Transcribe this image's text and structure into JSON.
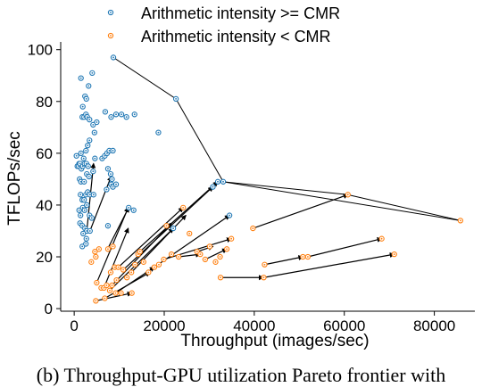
{
  "caption": "(b) Throughput-GPU utilization Pareto frontier with",
  "chart_data": {
    "type": "scatter",
    "xlabel": "Throughput (images/sec)",
    "ylabel": "TFLOPs/sec",
    "xlim": [
      -3000,
      89000
    ],
    "ylim": [
      -1,
      103
    ],
    "xticks": [
      0,
      20000,
      40000,
      60000,
      80000
    ],
    "yticks": [
      0,
      20,
      40,
      60,
      80,
      100
    ],
    "legend": {
      "placement": "top-center"
    },
    "colors": {
      "high": "#1f77b4",
      "low": "#ff7f0e",
      "frontier": "#000000",
      "arrow": "#000000"
    },
    "series": [
      {
        "name": "Arithmetic intensity >= CMR",
        "key": "high",
        "points": [
          [
            1500,
            89
          ],
          [
            1900,
            78
          ],
          [
            2400,
            82
          ],
          [
            2700,
            81
          ],
          [
            3200,
            86
          ],
          [
            4000,
            91
          ],
          [
            8700,
            97
          ],
          [
            1800,
            74
          ],
          [
            2200,
            74
          ],
          [
            2600,
            75
          ],
          [
            2900,
            74
          ],
          [
            3400,
            73
          ],
          [
            4200,
            71
          ],
          [
            5000,
            72
          ],
          [
            6900,
            76
          ],
          [
            8200,
            74
          ],
          [
            9300,
            75
          ],
          [
            10500,
            75
          ],
          [
            11600,
            74
          ],
          [
            13400,
            75
          ],
          [
            18700,
            68
          ],
          [
            22600,
            81
          ],
          [
            500,
            59
          ],
          [
            1100,
            56
          ],
          [
            1500,
            60
          ],
          [
            2100,
            58
          ],
          [
            2600,
            61
          ],
          [
            3000,
            63
          ],
          [
            3400,
            65
          ],
          [
            4500,
            68
          ],
          [
            700,
            55
          ],
          [
            1000,
            55
          ],
          [
            1300,
            56
          ],
          [
            1600,
            54
          ],
          [
            1900,
            55
          ],
          [
            2300,
            56
          ],
          [
            2700,
            56
          ],
          [
            3100,
            55
          ],
          [
            1200,
            50
          ],
          [
            1500,
            49
          ],
          [
            2200,
            49
          ],
          [
            2800,
            52
          ],
          [
            3300,
            51
          ],
          [
            4200,
            53
          ],
          [
            4600,
            58
          ],
          [
            6200,
            58
          ],
          [
            6800,
            59
          ],
          [
            7300,
            60
          ],
          [
            7800,
            61
          ],
          [
            8600,
            61
          ],
          [
            7500,
            54
          ],
          [
            8100,
            52
          ],
          [
            8400,
            50
          ],
          [
            1400,
            44
          ],
          [
            1800,
            42
          ],
          [
            2200,
            42
          ],
          [
            2600,
            44
          ],
          [
            3000,
            45
          ],
          [
            3500,
            44
          ],
          [
            4300,
            44
          ],
          [
            7200,
            46
          ],
          [
            8200,
            48
          ],
          [
            8600,
            47
          ],
          [
            9300,
            48
          ],
          [
            1100,
            38
          ],
          [
            1400,
            36
          ],
          [
            1900,
            39
          ],
          [
            2300,
            38
          ],
          [
            2800,
            40
          ],
          [
            3400,
            36
          ],
          [
            3900,
            35
          ],
          [
            1300,
            33
          ],
          [
            1800,
            32
          ],
          [
            2400,
            31
          ],
          [
            2800,
            30
          ],
          [
            7500,
            32
          ],
          [
            12100,
            39
          ],
          [
            13200,
            38
          ],
          [
            22000,
            31
          ],
          [
            30800,
            47
          ],
          [
            31900,
            49
          ],
          [
            33100,
            49
          ],
          [
            34500,
            36
          ],
          [
            2000,
            29
          ],
          [
            2700,
            27
          ],
          [
            3500,
            30
          ],
          [
            1800,
            24
          ],
          [
            2600,
            25
          ]
        ]
      },
      {
        "name": "Arithmetic intensity < CMR",
        "key": "low",
        "points": [
          [
            3800,
            18
          ],
          [
            4800,
            20
          ],
          [
            4600,
            22
          ],
          [
            5500,
            23
          ],
          [
            7500,
            23
          ],
          [
            8600,
            24
          ],
          [
            5000,
            10
          ],
          [
            6000,
            8
          ],
          [
            6600,
            8
          ],
          [
            7200,
            9
          ],
          [
            7900,
            7
          ],
          [
            8400,
            9
          ],
          [
            9400,
            11
          ],
          [
            4800,
            3
          ],
          [
            6800,
            4
          ],
          [
            9200,
            6
          ],
          [
            10400,
            6
          ],
          [
            12800,
            6
          ],
          [
            8100,
            14
          ],
          [
            9000,
            16
          ],
          [
            9800,
            16
          ],
          [
            10900,
            15
          ],
          [
            11700,
            12
          ],
          [
            12700,
            14
          ],
          [
            13500,
            17
          ],
          [
            14200,
            21
          ],
          [
            14600,
            22
          ],
          [
            15400,
            18
          ],
          [
            16500,
            14
          ],
          [
            17800,
            16
          ],
          [
            18800,
            17
          ],
          [
            19900,
            19
          ],
          [
            20500,
            32
          ],
          [
            21600,
            21
          ],
          [
            23200,
            20
          ],
          [
            24200,
            39
          ],
          [
            25600,
            29
          ],
          [
            27300,
            22
          ],
          [
            28000,
            21
          ],
          [
            29100,
            19
          ],
          [
            30100,
            24
          ],
          [
            31400,
            18
          ],
          [
            32400,
            20
          ],
          [
            33900,
            23
          ],
          [
            34900,
            27
          ],
          [
            32500,
            12
          ],
          [
            42100,
            12
          ],
          [
            42300,
            17
          ],
          [
            39700,
            31
          ],
          [
            50800,
            20
          ],
          [
            51900,
            20
          ],
          [
            60800,
            44
          ],
          [
            68300,
            27
          ],
          [
            71100,
            21
          ],
          [
            85800,
            34
          ]
        ]
      }
    ],
    "frontier": [
      [
        8700,
        97
      ],
      [
        22600,
        81
      ],
      [
        33100,
        49
      ],
      [
        60800,
        44
      ],
      [
        85800,
        34
      ]
    ],
    "frontier_lower": [
      [
        33100,
        49
      ],
      [
        85800,
        34
      ]
    ],
    "arrows": [
      [
        [
          2800,
          30
        ],
        [
          4300,
          56
        ]
      ],
      [
        [
          3500,
          30
        ],
        [
          8200,
          51
        ]
      ],
      [
        [
          7700,
          24
        ],
        [
          12100,
          39
        ]
      ],
      [
        [
          5000,
          10
        ],
        [
          12000,
          39
        ]
      ],
      [
        [
          6600,
          8
        ],
        [
          12000,
          31
        ]
      ],
      [
        [
          7900,
          7
        ],
        [
          22000,
          31
        ]
      ],
      [
        [
          8400,
          9
        ],
        [
          21600,
          33
        ]
      ],
      [
        [
          9800,
          16
        ],
        [
          24200,
          39
        ]
      ],
      [
        [
          10900,
          15
        ],
        [
          30800,
          47
        ]
      ],
      [
        [
          12700,
          14
        ],
        [
          24800,
          36
        ]
      ],
      [
        [
          14600,
          22
        ],
        [
          31900,
          49
        ]
      ],
      [
        [
          17800,
          16
        ],
        [
          34500,
          36
        ]
      ],
      [
        [
          19900,
          19
        ],
        [
          34900,
          27
        ]
      ],
      [
        [
          23200,
          20
        ],
        [
          28000,
          21
        ]
      ],
      [
        [
          27300,
          22
        ],
        [
          30800,
          24
        ]
      ],
      [
        [
          29100,
          19
        ],
        [
          33900,
          23
        ]
      ],
      [
        [
          32400,
          12
        ],
        [
          42000,
          12
        ]
      ],
      [
        [
          39700,
          31
        ],
        [
          60800,
          44
        ]
      ],
      [
        [
          42300,
          17
        ],
        [
          50800,
          20
        ]
      ],
      [
        [
          51900,
          20
        ],
        [
          68300,
          27
        ]
      ],
      [
        [
          42100,
          12
        ],
        [
          71100,
          21
        ]
      ],
      [
        [
          4800,
          3
        ],
        [
          12800,
          6
        ]
      ],
      [
        [
          6800,
          4
        ],
        [
          16800,
          14
        ]
      ],
      [
        [
          9200,
          6
        ],
        [
          17800,
          16
        ]
      ]
    ]
  }
}
